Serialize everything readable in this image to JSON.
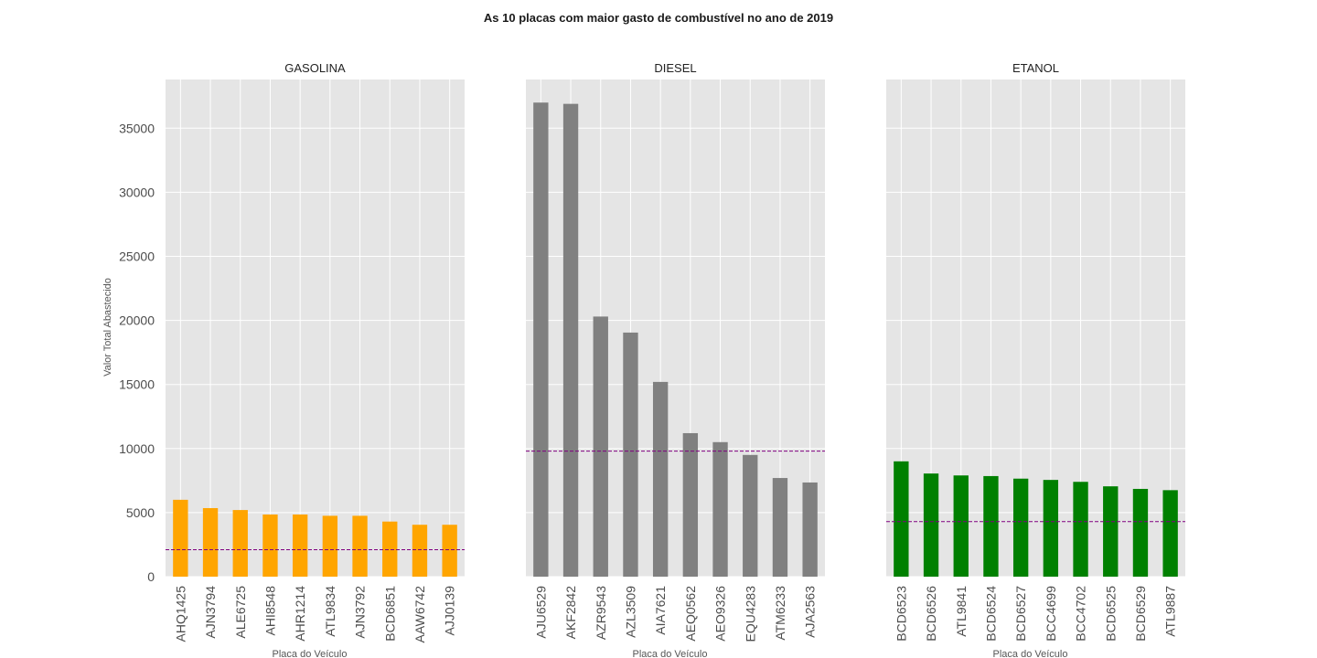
{
  "chart_data": {
    "suptitle": "As 10 placas com maior gasto de combustível no ano de 2019",
    "ylabel": "Valor Total Abastecido",
    "xlabel": "Placa do Veículo",
    "ylim": [
      0,
      38800
    ],
    "yticks": [
      0,
      5000,
      10000,
      15000,
      20000,
      25000,
      30000,
      35000
    ],
    "grid": true,
    "panels": [
      {
        "type": "bar",
        "title": "GASOLINA",
        "color": "#ffa500",
        "categories": [
          "AHQ1425",
          "AJN3794",
          "ALE6725",
          "AHI8548",
          "AHR1214",
          "ATL9834",
          "AJN3792",
          "BCD6851",
          "AAW6742",
          "AJJ0139"
        ],
        "values": [
          6000,
          5350,
          5200,
          4850,
          4850,
          4750,
          4750,
          4300,
          4050,
          4050
        ],
        "mean_line": 2100
      },
      {
        "type": "bar",
        "title": "DIESEL",
        "color": "#808080",
        "categories": [
          "AJU6529",
          "AKF2842",
          "AZR9543",
          "AZL3509",
          "AIA7621",
          "AEQ0562",
          "AEO9326",
          "EQU4283",
          "ATM6233",
          "AJA2563"
        ],
        "values": [
          37000,
          36900,
          20300,
          19050,
          15200,
          11200,
          10500,
          9500,
          7700,
          7350
        ],
        "mean_line": 9800
      },
      {
        "type": "bar",
        "title": "ETANOL",
        "color": "#008000",
        "categories": [
          "BCD6523",
          "BCD6526",
          "ATL9841",
          "BCD6524",
          "BCD6527",
          "BCC4699",
          "BCC4702",
          "BCD6525",
          "BCD6529",
          "ATL9887"
        ],
        "values": [
          9000,
          8050,
          7900,
          7850,
          7650,
          7550,
          7400,
          7050,
          6850,
          6750
        ],
        "mean_line": 4300
      }
    ]
  },
  "colors": {
    "panel_background": "#e5e5e5",
    "grid": "#ffffff",
    "mean_line": "#800080"
  }
}
